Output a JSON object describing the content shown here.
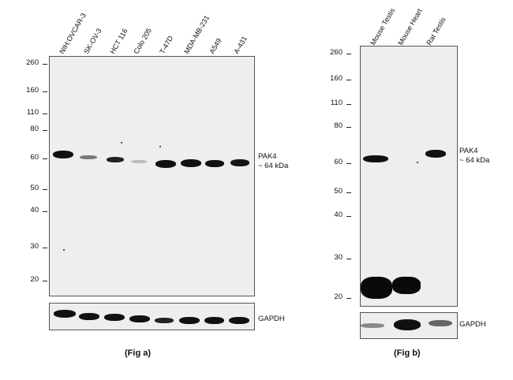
{
  "fig_a": {
    "lanes": [
      "NIH:OVCAR-3",
      "SK-OV-3",
      "HCT 116",
      "Colo 205",
      "T-47D",
      "MDA-MB-231",
      "A549",
      "A-431"
    ],
    "mw_markers": [
      "260",
      "160",
      "110",
      "80",
      "60",
      "50",
      "40",
      "30",
      "20"
    ],
    "target_label": "PAK4",
    "target_size": "~ 64 kDa",
    "loading_control": "GAPDH",
    "caption": "(Fig a)"
  },
  "fig_b": {
    "lanes": [
      "Mouse Testis",
      "Mouse Heart",
      "Rat Testis"
    ],
    "mw_markers": [
      "260",
      "160",
      "110",
      "80",
      "60",
      "50",
      "40",
      "30",
      "20"
    ],
    "target_label": "PAK4",
    "target_size": "~ 64 kDa",
    "loading_control": "GAPDH",
    "caption": "(Fig b)"
  }
}
